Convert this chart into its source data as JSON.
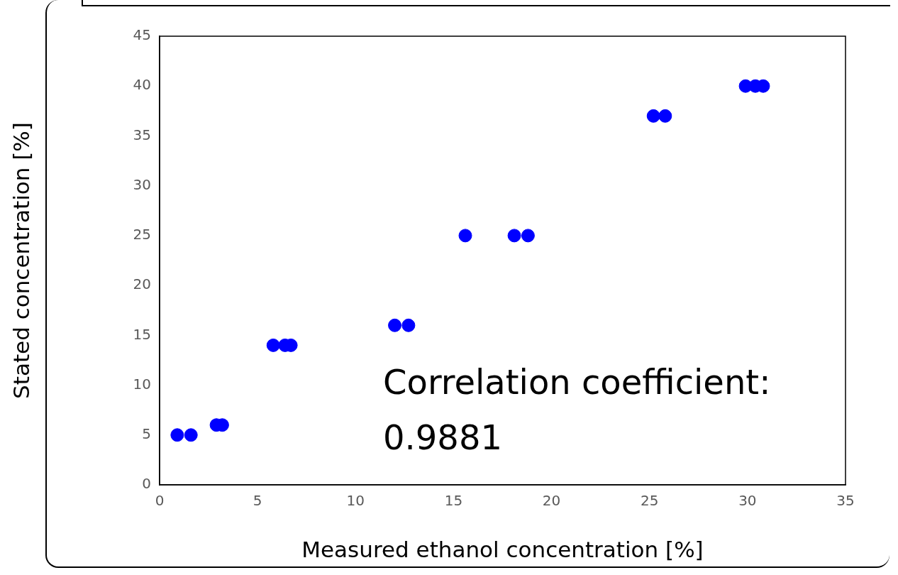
{
  "chart_data": {
    "type": "scatter",
    "xlabel": "Measured ethanol concentration [%]",
    "ylabel": "Stated concentration [%]",
    "annotations": [
      "Correlation coefficient: 0.9881"
    ],
    "series": [
      {
        "color": "#0000ff",
        "x": [
          0.9,
          1.6,
          2.9,
          3.2,
          5.8,
          6.4,
          6.7,
          12.0,
          12.7,
          15.6,
          18.1,
          18.8,
          25.2,
          25.8,
          29.9,
          30.4,
          30.8
        ],
        "values": [
          5,
          5,
          6,
          6,
          14,
          14,
          14,
          16,
          16,
          25,
          25,
          25,
          37,
          37,
          40,
          40,
          40
        ]
      }
    ],
    "xlim": [
      0,
      35
    ],
    "xticks": [
      0,
      5,
      10,
      15,
      20,
      25,
      30,
      35
    ],
    "ylim": [
      0,
      45
    ],
    "yticks": [
      0,
      5,
      10,
      15,
      20,
      25,
      30,
      35,
      40,
      45
    ],
    "grid": false,
    "legend": false,
    "marker": "circle"
  }
}
